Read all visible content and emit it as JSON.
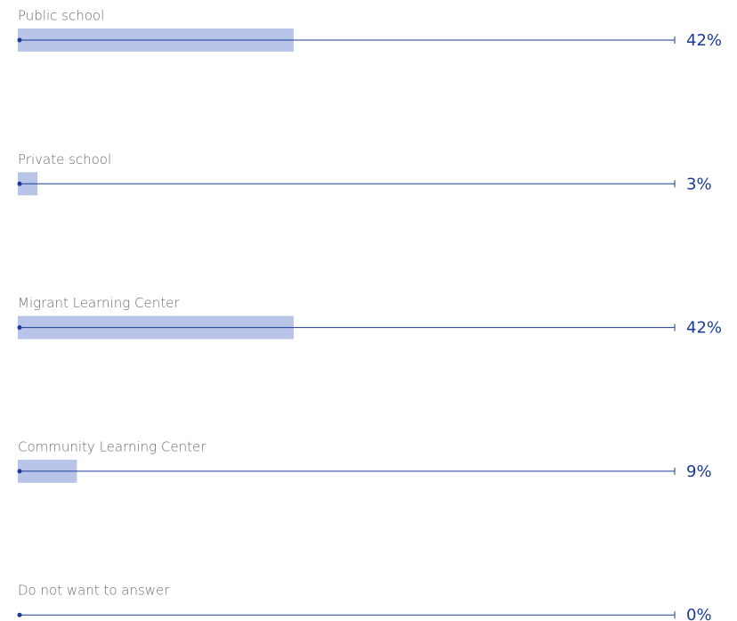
{
  "chart_data": {
    "type": "bar",
    "orientation": "horizontal",
    "categories": [
      "Public school",
      "Private school",
      "Migrant Learning Center",
      "Community Learning Center",
      "Do not want to answer"
    ],
    "values": [
      42,
      3,
      42,
      9,
      0
    ],
    "value_labels": [
      "42%",
      "3%",
      "42%",
      "9%",
      "0%"
    ],
    "color": "#b8c5e8",
    "line_color": "#1a3a96",
    "xlim": [
      0,
      100
    ]
  }
}
